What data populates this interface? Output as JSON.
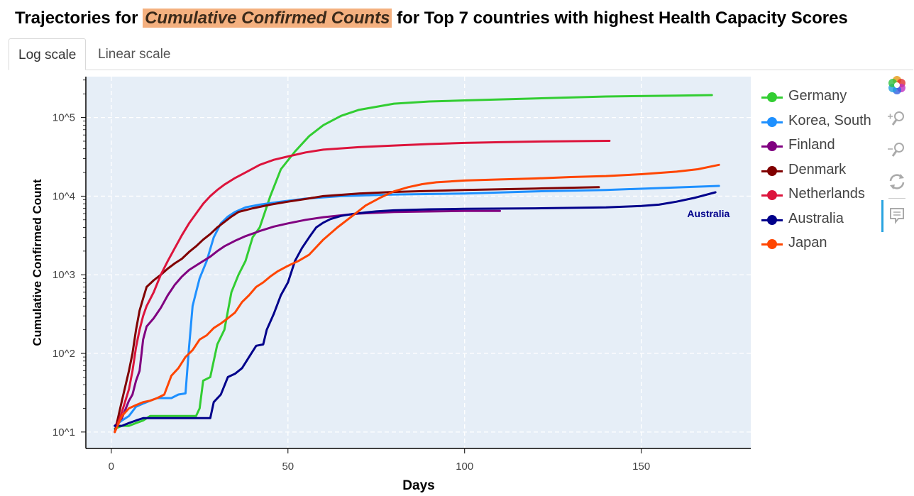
{
  "header": {
    "title_prefix": "Trajectories for ",
    "title_highlight": "Cumulative Confirmed Counts",
    "title_suffix": " for Top 7 countries with highest Health Capacity Scores"
  },
  "tabs": [
    {
      "label": "Log scale",
      "active": true
    },
    {
      "label": "Linear scale",
      "active": false
    }
  ],
  "toolbar": {
    "icons": [
      "bokeh-logo-icon",
      "zoom-in-icon",
      "zoom-out-icon",
      "reset-icon",
      "hover-tooltip-icon"
    ]
  },
  "chart_data": {
    "type": "line",
    "xlabel": "Days",
    "ylabel": "Cumulative Confirmed Count",
    "xlim": [
      -7,
      181
    ],
    "ylim_log10": [
      0.8,
      5.52
    ],
    "yscale": "log",
    "xticks": [
      0,
      50,
      100,
      150
    ],
    "xtick_labels": [
      "0",
      "50",
      "100",
      "150"
    ],
    "yticks": [
      10,
      100,
      1000,
      10000,
      100000
    ],
    "ytick_labels": [
      "10^1",
      "10^2",
      "10^3",
      "10^4",
      "10^5"
    ],
    "grid": true,
    "legend_position": "right",
    "annotations": [
      {
        "text": "Australia",
        "x": 163,
        "y": 6000,
        "color": "#00008b"
      }
    ],
    "series": [
      {
        "name": "Germany",
        "color": "#32cd32",
        "x": [
          1,
          3,
          5,
          7,
          9,
          11,
          15,
          20,
          24,
          25,
          26,
          28,
          30,
          32,
          34,
          36,
          38,
          40,
          42,
          45,
          48,
          52,
          56,
          60,
          65,
          70,
          80,
          90,
          100,
          120,
          140,
          160,
          170
        ],
        "y": [
          11,
          12,
          12,
          13,
          14,
          16,
          16,
          16,
          16,
          20,
          45,
          50,
          130,
          200,
          600,
          1000,
          1500,
          3000,
          4000,
          10000,
          22000,
          37000,
          58000,
          80000,
          105000,
          125000,
          150000,
          160000,
          165000,
          175000,
          185000,
          190000,
          193000
        ]
      },
      {
        "name": "Korea, South",
        "color": "#1e90ff",
        "x": [
          1,
          3,
          5,
          7,
          9,
          11,
          13,
          15,
          17,
          19,
          21,
          22,
          23,
          24,
          25,
          27,
          29,
          31,
          33,
          35,
          38,
          42,
          48,
          55,
          65,
          80,
          100,
          120,
          140,
          172
        ],
        "y": [
          12,
          14,
          16,
          21,
          23,
          25,
          27,
          27,
          27,
          30,
          31,
          120,
          400,
          600,
          900,
          1500,
          3000,
          4500,
          5500,
          6300,
          7200,
          7800,
          8500,
          9300,
          10000,
          10500,
          10800,
          11500,
          12000,
          13500
        ]
      },
      {
        "name": "Finland",
        "color": "#800080",
        "x": [
          1,
          3,
          5,
          6,
          7,
          8,
          9,
          10,
          12,
          14,
          16,
          18,
          20,
          22,
          25,
          28,
          30,
          32,
          35,
          38,
          42,
          46,
          50,
          55,
          60,
          65,
          70,
          80,
          100,
          110
        ],
        "y": [
          12,
          15,
          25,
          30,
          45,
          60,
          150,
          220,
          280,
          380,
          550,
          750,
          950,
          1150,
          1400,
          1700,
          2000,
          2300,
          2700,
          3100,
          3600,
          4100,
          4500,
          5000,
          5400,
          5700,
          6000,
          6300,
          6500,
          6500
        ]
      },
      {
        "name": "Denmark",
        "color": "#800000",
        "x": [
          1,
          3,
          5,
          6,
          7,
          8,
          9,
          10,
          12,
          14,
          16,
          18,
          20,
          22,
          24,
          26,
          28,
          30,
          32,
          34,
          36,
          40,
          45,
          50,
          55,
          60,
          70,
          80,
          100,
          120,
          138
        ],
        "y": [
          10,
          25,
          60,
          100,
          200,
          350,
          500,
          700,
          850,
          1000,
          1200,
          1400,
          1600,
          1950,
          2300,
          2800,
          3300,
          4000,
          4700,
          5500,
          6300,
          7000,
          7800,
          8500,
          9200,
          10000,
          10800,
          11300,
          12000,
          12500,
          13000
        ]
      },
      {
        "name": "Netherlands",
        "color": "#dc143c",
        "x": [
          1,
          3,
          5,
          6,
          7,
          8,
          9,
          10,
          12,
          14,
          16,
          18,
          20,
          22,
          24,
          26,
          28,
          30,
          32,
          35,
          38,
          42,
          46,
          50,
          55,
          60,
          70,
          80,
          90,
          100,
          110,
          120,
          130,
          141
        ],
        "y": [
          10,
          18,
          35,
          60,
          120,
          200,
          300,
          400,
          600,
          1000,
          1500,
          2200,
          3200,
          4500,
          6000,
          8000,
          10000,
          12000,
          14000,
          17000,
          20000,
          25000,
          29000,
          32000,
          36000,
          39000,
          42000,
          44000,
          46000,
          47500,
          48500,
          49500,
          50000,
          50500
        ]
      },
      {
        "name": "Australia",
        "color": "#00008b",
        "x": [
          1,
          3,
          5,
          7,
          9,
          11,
          15,
          20,
          25,
          28,
          29,
          31,
          33,
          35,
          37,
          39,
          41,
          43,
          44,
          46,
          48,
          50,
          52,
          54,
          56,
          58,
          60,
          62,
          65,
          68,
          72,
          75,
          80,
          90,
          100,
          120,
          140,
          147,
          150,
          155,
          160,
          165,
          171
        ],
        "y": [
          12,
          12,
          13,
          14,
          15,
          15,
          15,
          15,
          15,
          15,
          24,
          30,
          50,
          55,
          65,
          90,
          125,
          130,
          200,
          320,
          550,
          800,
          1500,
          2200,
          3000,
          4000,
          4600,
          5100,
          5600,
          5900,
          6200,
          6400,
          6600,
          6800,
          6900,
          7000,
          7200,
          7400,
          7500,
          7800,
          8500,
          9500,
          11200
        ]
      },
      {
        "name": "Japan",
        "color": "#ff4500",
        "x": [
          1,
          3,
          5,
          7,
          9,
          11,
          13,
          15,
          17,
          19,
          21,
          23,
          25,
          27,
          29,
          31,
          33,
          35,
          37,
          39,
          41,
          43,
          45,
          47,
          50,
          53,
          56,
          60,
          64,
          68,
          72,
          76,
          80,
          84,
          88,
          92,
          100,
          110,
          120,
          130,
          140,
          150,
          160,
          166,
          172
        ],
        "y": [
          10,
          16,
          20,
          22,
          24,
          25,
          27,
          30,
          52,
          65,
          90,
          110,
          150,
          170,
          210,
          240,
          280,
          330,
          450,
          550,
          700,
          800,
          950,
          1100,
          1300,
          1500,
          1800,
          2800,
          4000,
          5500,
          7600,
          9500,
          11500,
          13000,
          14200,
          15000,
          15800,
          16300,
          16800,
          17500,
          18000,
          19000,
          20500,
          22000,
          25000
        ]
      }
    ]
  }
}
